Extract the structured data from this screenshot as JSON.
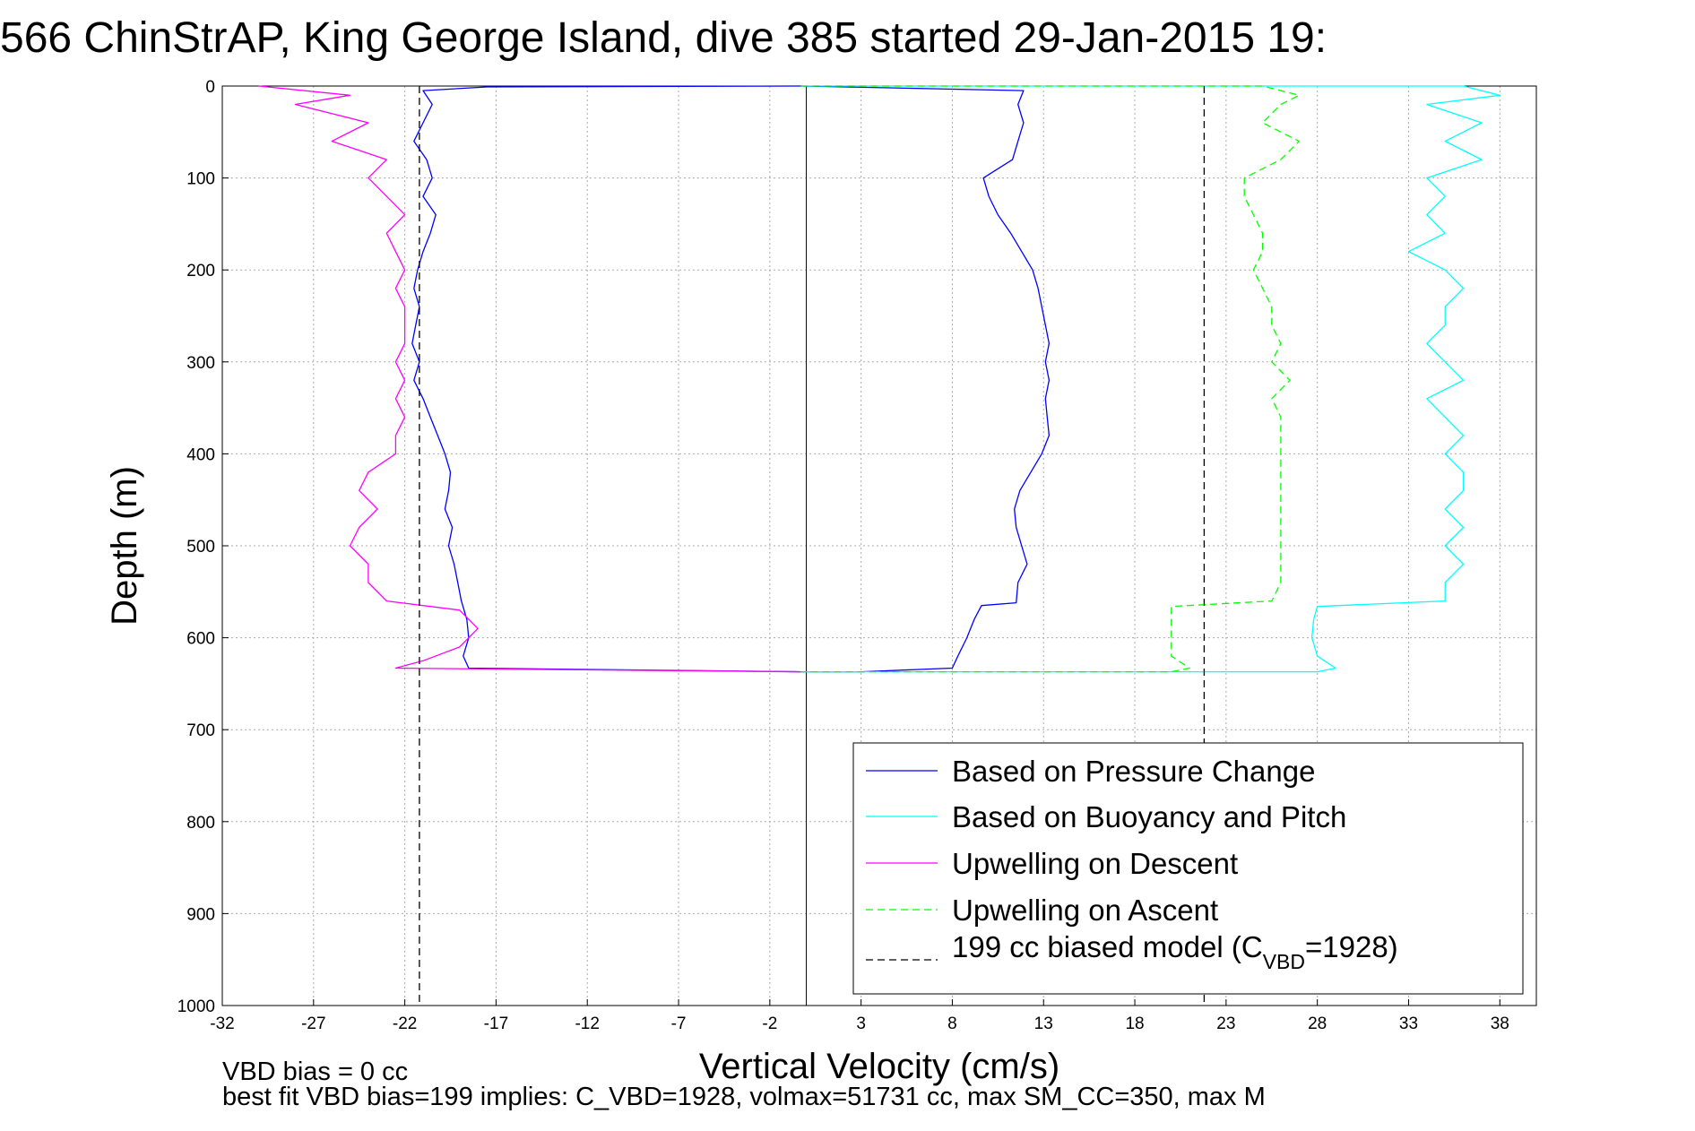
{
  "chart_data": {
    "type": "line",
    "title": "566 ChinStrAP, King George Island, dive 385 started 29-Jan-2015 19:",
    "xlabel": "Vertical Velocity (cm/s)",
    "ylabel": "Depth (m)",
    "xlim": [
      -32,
      40
    ],
    "ylim": [
      0,
      1000
    ],
    "y_reversed": true,
    "grid": true,
    "xticks": [
      -32,
      -27,
      -22,
      -17,
      -12,
      -7,
      -2,
      3,
      8,
      13,
      18,
      23,
      28,
      33,
      38
    ],
    "yticks": [
      0,
      100,
      200,
      300,
      400,
      500,
      600,
      700,
      800,
      900,
      1000
    ],
    "series": [
      {
        "name": "Based on Pressure Change",
        "color": "#0000ff",
        "dash": "solid",
        "points": [
          [
            -0.3,
            0
          ],
          [
            -17.5,
            1
          ],
          [
            -21,
            5
          ],
          [
            -20.5,
            20
          ],
          [
            -21,
            40
          ],
          [
            -21.5,
            60
          ],
          [
            -20.8,
            80
          ],
          [
            -20.5,
            100
          ],
          [
            -21,
            120
          ],
          [
            -20.3,
            140
          ],
          [
            -20.6,
            160
          ],
          [
            -21,
            180
          ],
          [
            -21.3,
            200
          ],
          [
            -21.5,
            220
          ],
          [
            -21.2,
            240
          ],
          [
            -21.4,
            260
          ],
          [
            -21.6,
            280
          ],
          [
            -21.2,
            300
          ],
          [
            -21.5,
            320
          ],
          [
            -21,
            340
          ],
          [
            -20.6,
            360
          ],
          [
            -20.2,
            380
          ],
          [
            -19.8,
            400
          ],
          [
            -19.5,
            420
          ],
          [
            -19.6,
            440
          ],
          [
            -19.8,
            460
          ],
          [
            -19.4,
            480
          ],
          [
            -19.6,
            500
          ],
          [
            -19.3,
            520
          ],
          [
            -19.1,
            540
          ],
          [
            -18.9,
            560
          ],
          [
            -18.6,
            580
          ],
          [
            -18.5,
            600
          ],
          [
            -18.8,
            620
          ],
          [
            -18.5,
            633
          ],
          [
            -5,
            636
          ],
          [
            -0.3,
            637
          ],
          [
            3,
            637
          ],
          [
            8,
            633
          ],
          [
            8.3,
            620
          ],
          [
            8.8,
            600
          ],
          [
            9.2,
            580
          ],
          [
            9.6,
            565
          ],
          [
            11.5,
            562
          ],
          [
            11.6,
            540
          ],
          [
            12.1,
            520
          ],
          [
            11.8,
            500
          ],
          [
            11.5,
            480
          ],
          [
            11.4,
            460
          ],
          [
            11.7,
            440
          ],
          [
            12.3,
            420
          ],
          [
            12.9,
            400
          ],
          [
            13.3,
            380
          ],
          [
            13.2,
            360
          ],
          [
            13.1,
            340
          ],
          [
            13.3,
            320
          ],
          [
            13.1,
            300
          ],
          [
            13.3,
            280
          ],
          [
            13.1,
            260
          ],
          [
            12.9,
            240
          ],
          [
            12.7,
            220
          ],
          [
            12.4,
            200
          ],
          [
            11.8,
            180
          ],
          [
            11.2,
            160
          ],
          [
            10.5,
            140
          ],
          [
            10,
            120
          ],
          [
            9.7,
            100
          ],
          [
            11.3,
            80
          ],
          [
            11.6,
            60
          ],
          [
            11.9,
            40
          ],
          [
            11.6,
            20
          ],
          [
            11.9,
            5
          ],
          [
            -0.3,
            0
          ]
        ]
      },
      {
        "name": "Based on Buoyancy and Pitch",
        "color": "#00ffff",
        "dash": "solid",
        "points": [
          [
            -0.3,
            0
          ],
          [
            36,
            0
          ],
          [
            38,
            10
          ],
          [
            34,
            20
          ],
          [
            37,
            40
          ],
          [
            35,
            60
          ],
          [
            37,
            80
          ],
          [
            34,
            100
          ],
          [
            35,
            120
          ],
          [
            34,
            140
          ],
          [
            35,
            160
          ],
          [
            33,
            180
          ],
          [
            35,
            200
          ],
          [
            36,
            220
          ],
          [
            35,
            240
          ],
          [
            35,
            260
          ],
          [
            34,
            280
          ],
          [
            35,
            300
          ],
          [
            36,
            320
          ],
          [
            34,
            340
          ],
          [
            35,
            360
          ],
          [
            36,
            380
          ],
          [
            35,
            400
          ],
          [
            36,
            420
          ],
          [
            36,
            440
          ],
          [
            35,
            460
          ],
          [
            36,
            480
          ],
          [
            35,
            500
          ],
          [
            36,
            520
          ],
          [
            35,
            540
          ],
          [
            35,
            560
          ],
          [
            28,
            566
          ],
          [
            27.8,
            580
          ],
          [
            27.7,
            600
          ],
          [
            28,
            620
          ],
          [
            29,
            633
          ],
          [
            28,
            637
          ],
          [
            -0.3,
            637
          ]
        ]
      },
      {
        "name": "Upwelling on Descent",
        "color": "#ff00ff",
        "dash": "solid",
        "points": [
          [
            -30,
            0
          ],
          [
            -25,
            10
          ],
          [
            -28,
            20
          ],
          [
            -24,
            40
          ],
          [
            -26,
            60
          ],
          [
            -23,
            80
          ],
          [
            -24,
            100
          ],
          [
            -23,
            120
          ],
          [
            -22,
            140
          ],
          [
            -23,
            160
          ],
          [
            -22.5,
            180
          ],
          [
            -22,
            200
          ],
          [
            -22.5,
            220
          ],
          [
            -22,
            240
          ],
          [
            -22,
            260
          ],
          [
            -22,
            280
          ],
          [
            -22.5,
            300
          ],
          [
            -22,
            320
          ],
          [
            -22.5,
            340
          ],
          [
            -22,
            360
          ],
          [
            -22.5,
            380
          ],
          [
            -22.5,
            400
          ],
          [
            -24,
            420
          ],
          [
            -24.5,
            440
          ],
          [
            -23.5,
            460
          ],
          [
            -24.5,
            480
          ],
          [
            -25,
            500
          ],
          [
            -24,
            520
          ],
          [
            -24,
            540
          ],
          [
            -23,
            560
          ],
          [
            -19,
            570
          ],
          [
            -18,
            590
          ],
          [
            -19,
            610
          ],
          [
            -21,
            625
          ],
          [
            -22.5,
            633
          ],
          [
            -0.3,
            637
          ]
        ]
      },
      {
        "name": "Upwelling on Ascent",
        "color": "#00ff00",
        "dash": "dashed",
        "points": [
          [
            -0.3,
            0
          ],
          [
            25,
            0
          ],
          [
            27,
            10
          ],
          [
            26,
            20
          ],
          [
            25,
            40
          ],
          [
            27,
            60
          ],
          [
            26,
            80
          ],
          [
            24,
            100
          ],
          [
            24,
            120
          ],
          [
            24.5,
            140
          ],
          [
            25,
            160
          ],
          [
            25,
            180
          ],
          [
            24.5,
            200
          ],
          [
            25,
            220
          ],
          [
            25.5,
            240
          ],
          [
            25.5,
            260
          ],
          [
            26,
            280
          ],
          [
            25.5,
            300
          ],
          [
            26.5,
            320
          ],
          [
            25.5,
            340
          ],
          [
            26,
            360
          ],
          [
            26,
            380
          ],
          [
            26,
            400
          ],
          [
            26,
            420
          ],
          [
            26,
            440
          ],
          [
            26,
            460
          ],
          [
            26,
            480
          ],
          [
            26,
            500
          ],
          [
            26,
            520
          ],
          [
            26,
            540
          ],
          [
            25.5,
            560
          ],
          [
            20,
            566
          ],
          [
            20,
            580
          ],
          [
            20,
            600
          ],
          [
            20,
            620
          ],
          [
            21,
            633
          ],
          [
            20,
            637
          ],
          [
            -0.3,
            637
          ]
        ]
      },
      {
        "name": "199 cc biased model (C_VBD=1928)",
        "color": "#000000",
        "dash": "dashed",
        "points": [
          [
            -21.2,
            0
          ],
          [
            -21.2,
            1000
          ]
        ]
      },
      {
        "name": "199 cc biased model (C_VBD=1928)",
        "color": "#000000",
        "dash": "dashed",
        "points": [
          [
            21.8,
            0
          ],
          [
            21.8,
            1000
          ]
        ]
      }
    ],
    "reference_lines": [
      {
        "x": 0,
        "color": "#000000",
        "dash": "solid"
      }
    ],
    "legend": {
      "placement": "bottom-right",
      "entries": [
        {
          "label": "Based on Pressure Change",
          "color": "#0000ff",
          "dash": "solid"
        },
        {
          "label": "Based on Buoyancy and Pitch",
          "color": "#00ffff",
          "dash": "solid"
        },
        {
          "label": "Upwelling on Descent",
          "color": "#ff00ff",
          "dash": "solid"
        },
        {
          "label": "Upwelling on Ascent",
          "color": "#00ff00",
          "dash": "dashed"
        },
        {
          "label_main": "199 cc biased model (C",
          "label_sub": "VBD",
          "label_tail": "=1928)",
          "color": "#000000",
          "dash": "dashed"
        }
      ]
    },
    "notes": [
      "VBD bias = 0 cc",
      "best fit VBD bias=199 implies: C_VBD=1928, volmax=51731 cc, max SM_CC=350, max M"
    ]
  }
}
